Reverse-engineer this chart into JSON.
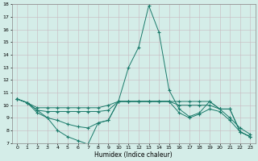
{
  "xlabel": "Humidex (Indice chaleur)",
  "bg_color": "#d4ede8",
  "line_color": "#1a7a6a",
  "grid_color": "#c8e0dc",
  "xlim": [
    -0.5,
    23.5
  ],
  "ylim": [
    7,
    18
  ],
  "xticks": [
    0,
    1,
    2,
    3,
    4,
    5,
    6,
    7,
    8,
    9,
    10,
    11,
    12,
    13,
    14,
    15,
    16,
    17,
    18,
    19,
    20,
    21,
    22,
    23
  ],
  "yticks": [
    7,
    8,
    9,
    10,
    11,
    12,
    13,
    14,
    15,
    16,
    17,
    18
  ],
  "series": [
    [
      10.5,
      10.2,
      9.6,
      9.5,
      9.5,
      9.5,
      9.5,
      9.5,
      9.5,
      9.6,
      10.3,
      10.3,
      10.3,
      10.3,
      10.3,
      10.3,
      10.0,
      10.0,
      10.0,
      10.0,
      9.7,
      9.7,
      7.9,
      7.5
    ],
    [
      10.5,
      10.2,
      9.8,
      9.8,
      9.8,
      9.8,
      9.8,
      9.8,
      9.8,
      10.0,
      10.3,
      10.3,
      10.3,
      10.3,
      10.3,
      10.3,
      10.3,
      10.3,
      10.3,
      10.3,
      9.7,
      9.7,
      7.9,
      7.5
    ],
    [
      10.5,
      10.2,
      9.6,
      9.0,
      8.8,
      8.5,
      8.3,
      8.2,
      8.6,
      8.8,
      10.3,
      13.0,
      14.6,
      17.9,
      15.8,
      11.2,
      9.7,
      9.1,
      9.4,
      10.3,
      9.7,
      9.0,
      8.2,
      7.7
    ],
    [
      10.5,
      10.2,
      9.4,
      9.0,
      8.0,
      7.5,
      7.2,
      6.9,
      8.6,
      8.8,
      10.3,
      10.3,
      10.3,
      10.3,
      10.3,
      10.3,
      9.4,
      9.0,
      9.3,
      9.7,
      9.5,
      8.8,
      7.9,
      7.5
    ]
  ]
}
